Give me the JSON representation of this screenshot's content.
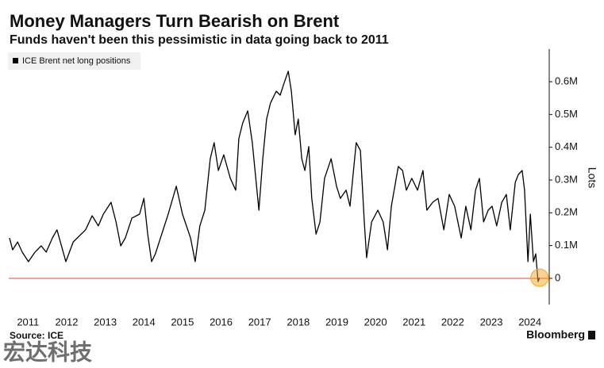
{
  "chart_data": {
    "type": "line",
    "title": "Money Managers Turn Bearish on Brent",
    "subtitle": "Funds haven't been this pessimistic in data going back to 2011",
    "y_axis_label": "Lots",
    "source": "Source: ICE",
    "brand": "Bloomberg",
    "watermark": "宏达科技",
    "xlim": [
      2011,
      2025
    ],
    "xticks": [
      {
        "value": 2011.5,
        "label": "2011"
      },
      {
        "value": 2012.5,
        "label": "2012"
      },
      {
        "value": 2013.5,
        "label": "2013"
      },
      {
        "value": 2014.5,
        "label": "2014"
      },
      {
        "value": 2015.5,
        "label": "2015"
      },
      {
        "value": 2016.5,
        "label": "2016"
      },
      {
        "value": 2017.5,
        "label": "2017"
      },
      {
        "value": 2018.5,
        "label": "2018"
      },
      {
        "value": 2019.5,
        "label": "2019"
      },
      {
        "value": 2020.5,
        "label": "2020"
      },
      {
        "value": 2021.5,
        "label": "2021"
      },
      {
        "value": 2022.5,
        "label": "2022"
      },
      {
        "value": 2023.5,
        "label": "2023"
      },
      {
        "value": 2024.5,
        "label": "2024"
      }
    ],
    "ylim": [
      -0.08,
      0.7
    ],
    "yticks": [
      0,
      {
        "value": 0.1,
        "label": "0.1M"
      },
      {
        "value": 0.2,
        "label": "0.2M"
      },
      {
        "value": 0.3,
        "label": "0.3M"
      },
      {
        "value": 0.4,
        "label": "0.4M"
      },
      {
        "value": 0.5,
        "label": "0.5M"
      },
      {
        "value": 0.6,
        "label": "0.6M"
      }
    ],
    "grid": false,
    "legend": "top-left",
    "zero_line_color": "#e8413c",
    "highlight_color": "#f5a623",
    "x": [
      2011.02,
      2011.1,
      2011.23,
      2011.35,
      2011.51,
      2011.68,
      2011.84,
      2011.97,
      2012.13,
      2012.25,
      2012.48,
      2012.67,
      2012.99,
      2013.16,
      2013.32,
      2013.45,
      2013.65,
      2013.78,
      2013.9,
      2014.02,
      2014.19,
      2014.39,
      2014.5,
      2014.6,
      2014.7,
      2014.8,
      2014.93,
      2015.13,
      2015.34,
      2015.5,
      2015.71,
      2015.83,
      2015.95,
      2016.08,
      2016.22,
      2016.32,
      2016.43,
      2016.57,
      2016.74,
      2016.88,
      2016.96,
      2017.06,
      2017.19,
      2017.31,
      2017.48,
      2017.58,
      2017.68,
      2017.78,
      2017.93,
      2018.03,
      2018.13,
      2018.24,
      2018.32,
      2018.42,
      2018.5,
      2018.59,
      2018.67,
      2018.77,
      2018.85,
      2018.96,
      2019.06,
      2019.18,
      2019.35,
      2019.49,
      2019.59,
      2019.74,
      2019.84,
      2020.0,
      2020.11,
      2020.21,
      2020.27,
      2020.4,
      2020.56,
      2020.7,
      2020.81,
      2020.91,
      2021.09,
      2021.2,
      2021.3,
      2021.44,
      2021.59,
      2021.73,
      2021.83,
      2021.98,
      2022.12,
      2022.27,
      2022.41,
      2022.55,
      2022.72,
      2022.84,
      2022.97,
      2023.09,
      2023.19,
      2023.3,
      2023.42,
      2023.52,
      2023.64,
      2023.77,
      2023.89,
      2023.99,
      2024.12,
      2024.2,
      2024.3,
      2024.36,
      2024.45,
      2024.51,
      2024.59,
      2024.65,
      2024.71,
      2024.75
    ],
    "series": [
      {
        "name": "ICE Brent net long positions",
        "color": "#000000",
        "values": [
          0.123,
          0.087,
          0.111,
          0.08,
          0.051,
          0.08,
          0.099,
          0.08,
          0.123,
          0.148,
          0.051,
          0.111,
          0.148,
          0.191,
          0.16,
          0.196,
          0.232,
          0.172,
          0.099,
          0.123,
          0.184,
          0.196,
          0.244,
          0.135,
          0.051,
          0.075,
          0.123,
          0.196,
          0.281,
          0.196,
          0.123,
          0.051,
          0.16,
          0.208,
          0.365,
          0.414,
          0.329,
          0.377,
          0.305,
          0.269,
          0.426,
          0.474,
          0.511,
          0.414,
          0.208,
          0.365,
          0.486,
          0.535,
          0.571,
          0.559,
          0.595,
          0.632,
          0.571,
          0.438,
          0.486,
          0.365,
          0.329,
          0.402,
          0.244,
          0.135,
          0.172,
          0.305,
          0.365,
          0.281,
          0.244,
          0.269,
          0.22,
          0.414,
          0.39,
          0.172,
          0.063,
          0.172,
          0.208,
          0.172,
          0.087,
          0.22,
          0.341,
          0.329,
          0.269,
          0.305,
          0.269,
          0.329,
          0.208,
          0.232,
          0.244,
          0.148,
          0.256,
          0.22,
          0.123,
          0.22,
          0.148,
          0.269,
          0.305,
          0.172,
          0.208,
          0.22,
          0.16,
          0.232,
          0.256,
          0.148,
          0.293,
          0.317,
          0.329,
          0.269,
          0.051,
          0.196,
          0.051,
          0.075,
          -0.01,
          0.002
        ]
      }
    ]
  }
}
